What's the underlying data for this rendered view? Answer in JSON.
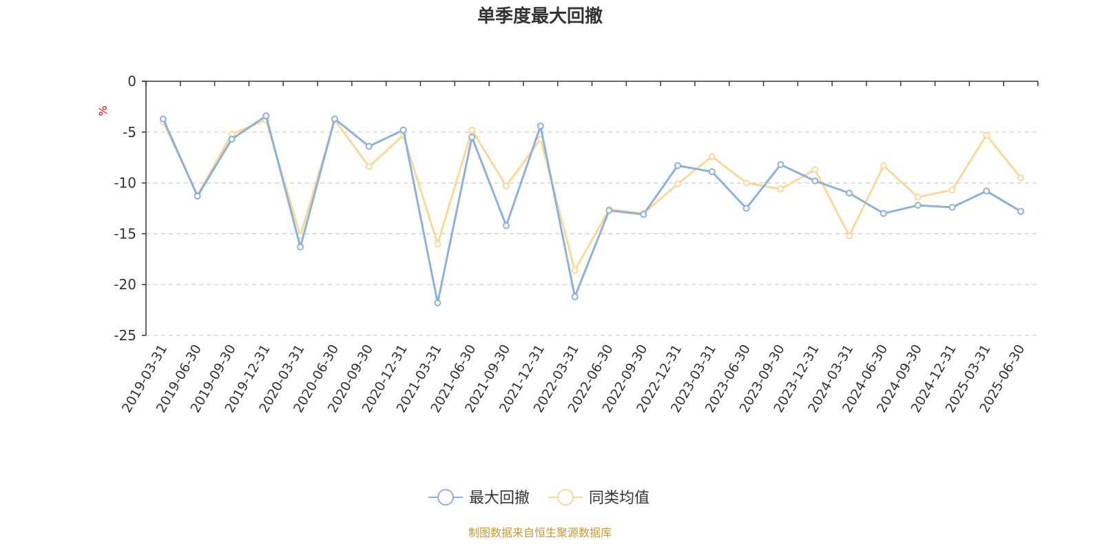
{
  "chart_data": {
    "type": "line",
    "title": "单季度最大回撤",
    "ylabel": "%",
    "ylim": [
      -25,
      0
    ],
    "yticks": [
      0,
      -5,
      -10,
      -15,
      -20,
      -25
    ],
    "grid": true,
    "legend_position": "bottom-center",
    "categories": [
      "2019-03-31",
      "2019-06-30",
      "2019-09-30",
      "2019-12-31",
      "2020-03-31",
      "2020-06-30",
      "2020-09-30",
      "2020-12-31",
      "2021-03-31",
      "2021-06-30",
      "2021-09-30",
      "2021-12-31",
      "2022-03-31",
      "2022-06-30",
      "2022-09-30",
      "2022-12-31",
      "2023-03-31",
      "2023-06-30",
      "2023-09-30",
      "2023-12-31",
      "2024-03-31",
      "2024-06-30",
      "2024-09-30",
      "2024-12-31",
      "2025-03-31",
      "2025-06-30"
    ],
    "series": [
      {
        "name": "最大回撤",
        "color": "#8eb0dc",
        "values": [
          -3.7,
          -11.3,
          -5.7,
          -3.4,
          -16.3,
          -3.7,
          -6.4,
          -4.8,
          -21.8,
          -5.5,
          -14.2,
          -4.4,
          -21.2,
          -12.7,
          -13.1,
          -8.3,
          -8.9,
          -12.5,
          -8.2,
          -9.8,
          -11.0,
          -13.0,
          -12.2,
          -12.4,
          -10.8,
          -12.8
        ]
      },
      {
        "name": "同类均值",
        "color": "#f9d99a",
        "values": [
          -4.0,
          -11.2,
          -5.2,
          -3.8,
          -15.2,
          -3.8,
          -8.4,
          -5.3,
          -16.0,
          -4.8,
          -10.3,
          -5.7,
          -18.6,
          -12.6,
          -13.0,
          -10.1,
          -7.4,
          -10.0,
          -10.6,
          -8.7,
          -15.2,
          -8.3,
          -11.4,
          -10.7,
          -5.3,
          -9.5
        ]
      }
    ]
  },
  "footer": {
    "source": "制图数据来自恒生聚源数据库"
  }
}
